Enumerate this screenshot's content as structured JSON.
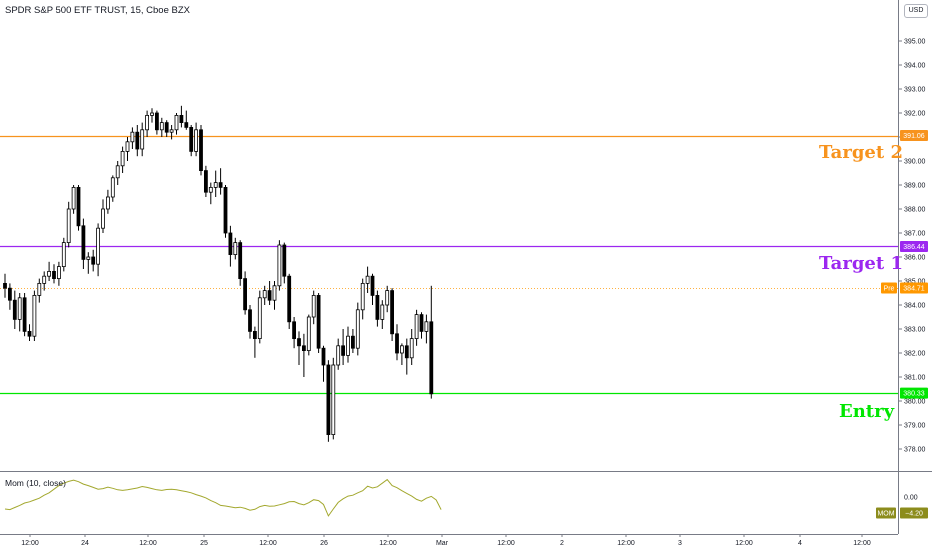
{
  "header": {
    "title": "SPDR S&P 500 ETF TRUST, 15, Cboe BZX",
    "currency": "USD"
  },
  "annotations": {
    "target2": "Target 2",
    "target1": "Target 1",
    "entry": "Entry"
  },
  "price_labels": {
    "target2": "391.06",
    "target1": "386.44",
    "pre_tag": "Pre",
    "pre_value": "384.71",
    "entry": "380.33"
  },
  "indicator": {
    "title": "Mom (10, close)",
    "tag": "MOM",
    "value": "−4.20",
    "zero_label": "0.00"
  },
  "colors": {
    "target2": "#f7931e",
    "target1": "#9c27f0",
    "entry": "#00e600",
    "up_candle": "#ffffff",
    "down_candle": "#000000",
    "momentum": "#a3a82e",
    "pre_tag": "#ff9800",
    "mom_tag": "#8c8c1c"
  },
  "chart_data": [
    {
      "type": "candlestick",
      "title": "SPDR S&P 500 ETF TRUST, 15, Cboe BZX",
      "ylim": [
        377.2,
        396.8
      ],
      "y_ticks": [
        "395.00",
        "394.00",
        "393.00",
        "392.00",
        "391.00",
        "390.00",
        "389.00",
        "388.00",
        "387.00",
        "386.00",
        "385.00",
        "384.00",
        "383.00",
        "382.00",
        "381.00",
        "380.00",
        "379.00",
        "378.00"
      ],
      "x_tick_labels": [
        "12:00",
        "24",
        "12:00",
        "25",
        "12:00",
        "26",
        "12:00",
        "Mar",
        "12:00",
        "2",
        "12:00",
        "3",
        "12:00",
        "4",
        "12:00"
      ],
      "horizontal_lines": [
        {
          "name": "Target 2",
          "value": 391.06
        },
        {
          "name": "Target 1",
          "value": 386.44
        },
        {
          "name": "Entry",
          "value": 380.33
        },
        {
          "name": "Pre",
          "value": 384.71
        }
      ],
      "candles": [
        {
          "o": 384.9,
          "h": 385.3,
          "l": 384.3,
          "c": 384.7
        },
        {
          "o": 384.7,
          "h": 384.9,
          "l": 383.8,
          "c": 384.2
        },
        {
          "o": 384.2,
          "h": 384.6,
          "l": 383.0,
          "c": 383.4
        },
        {
          "o": 383.4,
          "h": 384.5,
          "l": 382.9,
          "c": 384.3
        },
        {
          "o": 384.3,
          "h": 384.5,
          "l": 382.7,
          "c": 382.9
        },
        {
          "o": 382.9,
          "h": 383.2,
          "l": 382.5,
          "c": 382.7
        },
        {
          "o": 382.7,
          "h": 384.6,
          "l": 382.5,
          "c": 384.4
        },
        {
          "o": 384.4,
          "h": 385.1,
          "l": 384.1,
          "c": 384.9
        },
        {
          "o": 384.9,
          "h": 385.4,
          "l": 384.6,
          "c": 385.2
        },
        {
          "o": 385.2,
          "h": 385.8,
          "l": 385.0,
          "c": 385.4
        },
        {
          "o": 385.4,
          "h": 385.7,
          "l": 384.9,
          "c": 385.1
        },
        {
          "o": 385.1,
          "h": 385.8,
          "l": 384.8,
          "c": 385.6
        },
        {
          "o": 385.6,
          "h": 386.8,
          "l": 385.4,
          "c": 386.6
        },
        {
          "o": 386.6,
          "h": 388.3,
          "l": 386.4,
          "c": 388.0
        },
        {
          "o": 388.0,
          "h": 389.0,
          "l": 387.8,
          "c": 388.9
        },
        {
          "o": 388.9,
          "h": 389.0,
          "l": 387.1,
          "c": 387.3
        },
        {
          "o": 387.3,
          "h": 387.6,
          "l": 385.5,
          "c": 385.9
        },
        {
          "o": 385.9,
          "h": 386.2,
          "l": 385.3,
          "c": 386.0
        },
        {
          "o": 386.0,
          "h": 386.3,
          "l": 385.4,
          "c": 385.7
        },
        {
          "o": 385.7,
          "h": 387.4,
          "l": 385.2,
          "c": 387.2
        },
        {
          "o": 387.2,
          "h": 388.4,
          "l": 387.0,
          "c": 388.0
        },
        {
          "o": 388.0,
          "h": 388.8,
          "l": 387.8,
          "c": 388.5
        },
        {
          "o": 388.5,
          "h": 389.4,
          "l": 388.3,
          "c": 389.3
        },
        {
          "o": 389.3,
          "h": 390.0,
          "l": 389.0,
          "c": 389.8
        },
        {
          "o": 389.8,
          "h": 390.6,
          "l": 389.5,
          "c": 390.4
        },
        {
          "o": 390.4,
          "h": 391.0,
          "l": 390.0,
          "c": 390.8
        },
        {
          "o": 390.8,
          "h": 391.4,
          "l": 390.5,
          "c": 391.2
        },
        {
          "o": 391.2,
          "h": 391.5,
          "l": 390.2,
          "c": 390.5
        },
        {
          "o": 390.5,
          "h": 391.6,
          "l": 390.2,
          "c": 391.3
        },
        {
          "o": 391.3,
          "h": 392.1,
          "l": 391.0,
          "c": 391.9
        },
        {
          "o": 391.9,
          "h": 392.2,
          "l": 391.6,
          "c": 392.0
        },
        {
          "o": 392.0,
          "h": 392.1,
          "l": 391.1,
          "c": 391.3
        },
        {
          "o": 391.3,
          "h": 391.8,
          "l": 391.0,
          "c": 391.6
        },
        {
          "o": 391.6,
          "h": 391.7,
          "l": 391.0,
          "c": 391.2
        },
        {
          "o": 391.2,
          "h": 391.5,
          "l": 390.9,
          "c": 391.3
        },
        {
          "o": 391.3,
          "h": 392.0,
          "l": 391.1,
          "c": 391.9
        },
        {
          "o": 391.9,
          "h": 392.3,
          "l": 391.4,
          "c": 391.6
        },
        {
          "o": 391.6,
          "h": 392.1,
          "l": 391.3,
          "c": 391.4
        },
        {
          "o": 391.4,
          "h": 391.5,
          "l": 390.2,
          "c": 390.4
        },
        {
          "o": 390.4,
          "h": 391.6,
          "l": 390.2,
          "c": 391.3
        },
        {
          "o": 391.3,
          "h": 391.5,
          "l": 389.4,
          "c": 389.6
        },
        {
          "o": 389.6,
          "h": 389.8,
          "l": 388.5,
          "c": 388.7
        },
        {
          "o": 388.7,
          "h": 389.1,
          "l": 388.2,
          "c": 388.9
        },
        {
          "o": 388.9,
          "h": 389.6,
          "l": 388.5,
          "c": 389.1
        },
        {
          "o": 389.1,
          "h": 389.7,
          "l": 388.6,
          "c": 388.9
        },
        {
          "o": 388.9,
          "h": 389.0,
          "l": 386.8,
          "c": 387.0
        },
        {
          "o": 387.0,
          "h": 387.3,
          "l": 385.6,
          "c": 386.1
        },
        {
          "o": 386.1,
          "h": 386.8,
          "l": 385.9,
          "c": 386.6
        },
        {
          "o": 386.6,
          "h": 386.7,
          "l": 384.8,
          "c": 385.1
        },
        {
          "o": 385.1,
          "h": 385.4,
          "l": 383.6,
          "c": 383.8
        },
        {
          "o": 383.8,
          "h": 384.0,
          "l": 382.6,
          "c": 382.9
        },
        {
          "o": 382.9,
          "h": 383.1,
          "l": 381.8,
          "c": 382.6
        },
        {
          "o": 382.6,
          "h": 384.6,
          "l": 382.4,
          "c": 384.3
        },
        {
          "o": 384.3,
          "h": 384.8,
          "l": 384.0,
          "c": 384.6
        },
        {
          "o": 384.6,
          "h": 385.0,
          "l": 384.0,
          "c": 384.2
        },
        {
          "o": 384.2,
          "h": 385.0,
          "l": 383.8,
          "c": 384.8
        },
        {
          "o": 384.8,
          "h": 386.7,
          "l": 384.6,
          "c": 386.5
        },
        {
          "o": 386.5,
          "h": 386.6,
          "l": 384.9,
          "c": 385.2
        },
        {
          "o": 385.2,
          "h": 385.3,
          "l": 383.0,
          "c": 383.3
        },
        {
          "o": 383.3,
          "h": 383.5,
          "l": 382.2,
          "c": 382.6
        },
        {
          "o": 382.6,
          "h": 382.9,
          "l": 381.5,
          "c": 382.3
        },
        {
          "o": 382.3,
          "h": 382.8,
          "l": 381.0,
          "c": 382.1
        },
        {
          "o": 382.1,
          "h": 383.6,
          "l": 381.9,
          "c": 383.5
        },
        {
          "o": 383.5,
          "h": 384.6,
          "l": 383.2,
          "c": 384.4
        },
        {
          "o": 384.4,
          "h": 384.5,
          "l": 382.0,
          "c": 382.2
        },
        {
          "o": 382.2,
          "h": 382.3,
          "l": 380.8,
          "c": 381.5
        },
        {
          "o": 381.5,
          "h": 381.7,
          "l": 378.3,
          "c": 378.6
        },
        {
          "o": 378.6,
          "h": 381.8,
          "l": 378.4,
          "c": 381.5
        },
        {
          "o": 381.5,
          "h": 382.6,
          "l": 381.3,
          "c": 382.3
        },
        {
          "o": 382.3,
          "h": 383.0,
          "l": 381.5,
          "c": 381.9
        },
        {
          "o": 381.9,
          "h": 383.1,
          "l": 381.6,
          "c": 382.7
        },
        {
          "o": 382.7,
          "h": 383.0,
          "l": 382.0,
          "c": 382.2
        },
        {
          "o": 382.2,
          "h": 384.1,
          "l": 381.9,
          "c": 383.8
        },
        {
          "o": 383.8,
          "h": 385.1,
          "l": 383.4,
          "c": 384.9
        },
        {
          "o": 384.9,
          "h": 385.6,
          "l": 384.5,
          "c": 385.2
        },
        {
          "o": 385.2,
          "h": 385.3,
          "l": 384.0,
          "c": 384.4
        },
        {
          "o": 384.4,
          "h": 384.6,
          "l": 383.1,
          "c": 383.4
        },
        {
          "o": 383.4,
          "h": 384.2,
          "l": 383.0,
          "c": 384.0
        },
        {
          "o": 384.0,
          "h": 384.8,
          "l": 383.7,
          "c": 384.6
        },
        {
          "o": 384.6,
          "h": 384.7,
          "l": 382.5,
          "c": 382.8
        },
        {
          "o": 382.8,
          "h": 383.2,
          "l": 381.7,
          "c": 382.0
        },
        {
          "o": 382.0,
          "h": 382.4,
          "l": 381.5,
          "c": 382.3
        },
        {
          "o": 382.3,
          "h": 382.6,
          "l": 381.1,
          "c": 381.8
        },
        {
          "o": 381.8,
          "h": 383.0,
          "l": 381.5,
          "c": 382.6
        },
        {
          "o": 382.6,
          "h": 383.8,
          "l": 382.3,
          "c": 383.6
        },
        {
          "o": 383.6,
          "h": 383.7,
          "l": 382.6,
          "c": 382.9
        },
        {
          "o": 382.9,
          "h": 383.6,
          "l": 382.4,
          "c": 383.3
        },
        {
          "o": 383.3,
          "h": 384.8,
          "l": 380.1,
          "c": 380.3
        }
      ]
    },
    {
      "type": "line",
      "title": "Mom (10, close)",
      "series": [
        {
          "name": "Mom (10, close)",
          "values": [
            -4.0,
            -4.2,
            -3.5,
            -2.8,
            -2.0,
            -1.6,
            -1.0,
            -0.4,
            0.6,
            1.4,
            2.6,
            3.8,
            4.6,
            5.2,
            5.6,
            5.1,
            4.3,
            3.8,
            3.2,
            2.6,
            2.8,
            3.3,
            2.9,
            2.4,
            2.2,
            2.4,
            2.7,
            3.0,
            3.5,
            3.2,
            2.8,
            2.4,
            2.2,
            2.5,
            2.6,
            2.4,
            2.1,
            1.8,
            1.4,
            0.8,
            0.3,
            -0.3,
            -1.2,
            -1.9,
            -2.8,
            -3.0,
            -3.3,
            -3.6,
            -3.4,
            -3.8,
            -4.4,
            -4.1,
            -3.2,
            -2.8,
            -3.1,
            -3.0,
            -2.6,
            -2.2,
            -1.6,
            -1.5,
            -2.2,
            -2.6,
            -1.9,
            -0.9,
            -1.2,
            -2.5,
            -6.3,
            -4.0,
            -1.8,
            -0.6,
            0.3,
            0.6,
            1.4,
            2.1,
            3.6,
            3.0,
            3.4,
            4.6,
            5.8,
            3.8,
            3.1,
            2.1,
            1.2,
            0.3,
            -0.8,
            -1.4,
            -0.4,
            0.2,
            -1.0,
            -4.2
          ]
        }
      ]
    }
  ]
}
